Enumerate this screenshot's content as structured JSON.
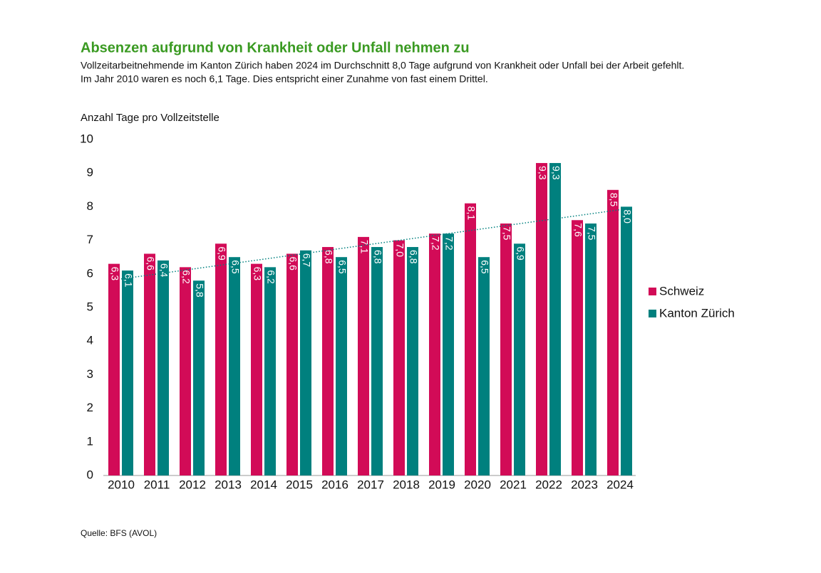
{
  "chart_data": {
    "type": "bar",
    "title": "Absenzen aufgrund von Krankheit oder Unfall nehmen zu",
    "subtitle": [
      "Vollzeitarbeitnehmende im Kanton Zürich haben 2024 im Durchschnitt 8,0 Tage aufgrund von Krankheit oder Unfall bei der Arbeit gefehlt.",
      "Im Jahr 2010 waren es noch 6,1 Tage. Dies entspricht einer Zunahme von fast einem Drittel."
    ],
    "y_label": "Anzahl Tage pro Vollzeitstelle",
    "source": "Quelle: BFS (AVOL)",
    "categories": [
      "2010",
      "2011",
      "2012",
      "2013",
      "2014",
      "2015",
      "2016",
      "2017",
      "2018",
      "2019",
      "2020",
      "2021",
      "2022",
      "2023",
      "2024"
    ],
    "series": [
      {
        "name": "Schweiz",
        "color": "#d20b57",
        "values": [
          6.3,
          6.6,
          6.2,
          6.9,
          6.3,
          6.6,
          6.8,
          7.1,
          7.0,
          7.2,
          8.1,
          7.5,
          9.3,
          7.6,
          8.5
        ],
        "value_labels": [
          "6,3",
          "6,6",
          "6,2",
          "6,9",
          "6,3",
          "6,6",
          "6,8",
          "7,1",
          "7,0",
          "7,2",
          "8,1",
          "7,5",
          "9,3",
          "7,6",
          "8,5"
        ]
      },
      {
        "name": "Kanton Zürich",
        "color": "#00807e",
        "values": [
          6.1,
          6.4,
          5.8,
          6.5,
          6.2,
          6.7,
          6.5,
          6.8,
          6.8,
          7.2,
          6.5,
          6.9,
          9.3,
          7.5,
          8.0
        ],
        "value_labels": [
          "6,1",
          "6,4",
          "5,8",
          "6,5",
          "6,2",
          "6,7",
          "6,5",
          "6,8",
          "6,8",
          "7,2",
          "6,5",
          "6,9",
          "9,3",
          "7,5",
          "8,0"
        ]
      }
    ],
    "trendline": {
      "series": 1,
      "color": "#00807e"
    },
    "ylim": [
      0,
      10
    ],
    "yticks": [
      0,
      1,
      2,
      3,
      4,
      5,
      6,
      7,
      8,
      9,
      10
    ],
    "grid": false,
    "legend": "right"
  }
}
